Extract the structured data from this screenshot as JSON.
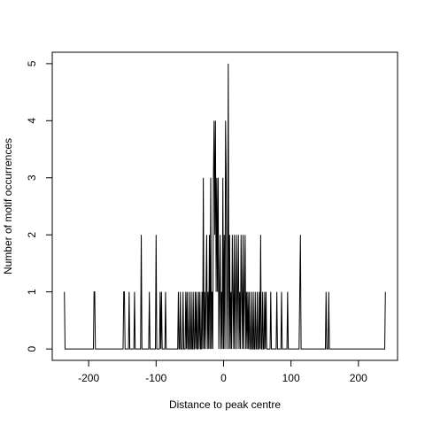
{
  "chart_data": {
    "type": "line",
    "xlabel": "Distance to peak centre",
    "ylabel": "Number of motif occurrences",
    "x": [
      -236,
      -235,
      -193,
      -192,
      -191,
      -190,
      -149,
      -148,
      -147,
      -146,
      -141,
      -140,
      -139,
      -133,
      -132,
      -131,
      -123,
      -122,
      -121,
      -111,
      -110,
      -109,
      -101,
      -100,
      -99,
      -95,
      -94,
      -93,
      -92,
      -91,
      -87,
      -86,
      -85,
      -68,
      -67,
      -66,
      -65,
      -64,
      -63,
      -61,
      -60,
      -59,
      -57,
      -56,
      -55,
      -54,
      -53,
      -52,
      -51,
      -50,
      -49,
      -48,
      -47,
      -46,
      -45,
      -44,
      -43,
      -42,
      -41,
      -40,
      -39,
      -38,
      -37,
      -36,
      -35,
      -34,
      -33,
      -32,
      -31,
      -30,
      -29,
      -28,
      -27,
      -26,
      -25,
      -24,
      -23,
      -22,
      -21,
      -20,
      -19,
      -18,
      -17,
      -16,
      -15,
      -14,
      -13,
      -12,
      -11,
      -10,
      -9,
      -8,
      -7,
      -6,
      -5,
      -4,
      -3,
      -2,
      -1,
      0,
      1,
      2,
      3,
      4,
      5,
      6,
      7,
      8,
      9,
      10,
      11,
      12,
      13,
      14,
      15,
      16,
      17,
      18,
      19,
      20,
      21,
      22,
      23,
      24,
      25,
      26,
      27,
      28,
      29,
      30,
      31,
      32,
      33,
      34,
      35,
      36,
      37,
      38,
      39,
      40,
      41,
      42,
      43,
      44,
      45,
      46,
      47,
      48,
      49,
      50,
      51,
      52,
      53,
      54,
      55,
      56,
      57,
      58,
      59,
      60,
      61,
      62,
      63,
      64,
      69,
      70,
      71,
      78,
      79,
      80,
      85,
      86,
      87,
      94,
      95,
      96,
      112,
      113,
      114,
      115,
      151,
      152,
      153,
      155,
      156,
      157,
      239,
      240
    ],
    "series": [
      {
        "color": "#000000",
        "values": [
          1,
          0,
          0,
          1,
          1,
          0,
          0,
          1,
          1,
          0,
          0,
          1,
          0,
          0,
          1,
          0,
          0,
          2,
          0,
          0,
          1,
          0,
          0,
          2,
          0,
          0,
          1,
          0,
          1,
          0,
          0,
          1,
          0,
          0,
          1,
          0,
          0,
          1,
          0,
          0,
          1,
          0,
          0,
          1,
          0,
          1,
          0,
          0,
          1,
          0,
          0,
          1,
          0,
          0,
          1,
          0,
          0,
          1,
          0,
          1,
          0,
          0,
          1,
          0,
          1,
          0,
          0,
          1,
          0,
          3,
          0,
          1,
          0,
          1,
          2,
          0,
          1,
          0,
          2,
          0,
          3,
          0,
          1,
          0,
          3,
          4,
          2,
          4,
          1,
          3,
          1,
          3,
          0,
          1,
          2,
          0,
          1,
          0,
          3,
          0,
          2,
          0,
          4,
          3,
          0,
          1,
          5,
          0,
          2,
          0,
          1,
          0,
          2,
          1,
          0,
          2,
          0,
          1,
          2,
          0,
          1,
          2,
          0,
          1,
          0,
          2,
          1,
          0,
          2,
          0,
          1,
          2,
          0,
          1,
          0,
          1,
          0,
          1,
          0,
          0,
          1,
          0,
          0,
          1,
          0,
          0,
          1,
          0,
          0,
          1,
          0,
          0,
          1,
          0,
          2,
          0,
          0,
          1,
          0,
          0,
          1,
          0,
          1,
          0,
          0,
          1,
          0,
          0,
          1,
          0,
          0,
          1,
          0,
          0,
          1,
          0,
          0,
          1,
          2,
          0,
          0,
          1,
          0,
          0,
          1,
          0,
          0,
          1
        ]
      }
    ],
    "xlim": [
      -254,
      258
    ],
    "ylim": [
      -0.2,
      5.2
    ],
    "xticks": [
      -200,
      -100,
      0,
      100,
      200
    ],
    "yticks": [
      0,
      1,
      2,
      3,
      4,
      5
    ]
  }
}
